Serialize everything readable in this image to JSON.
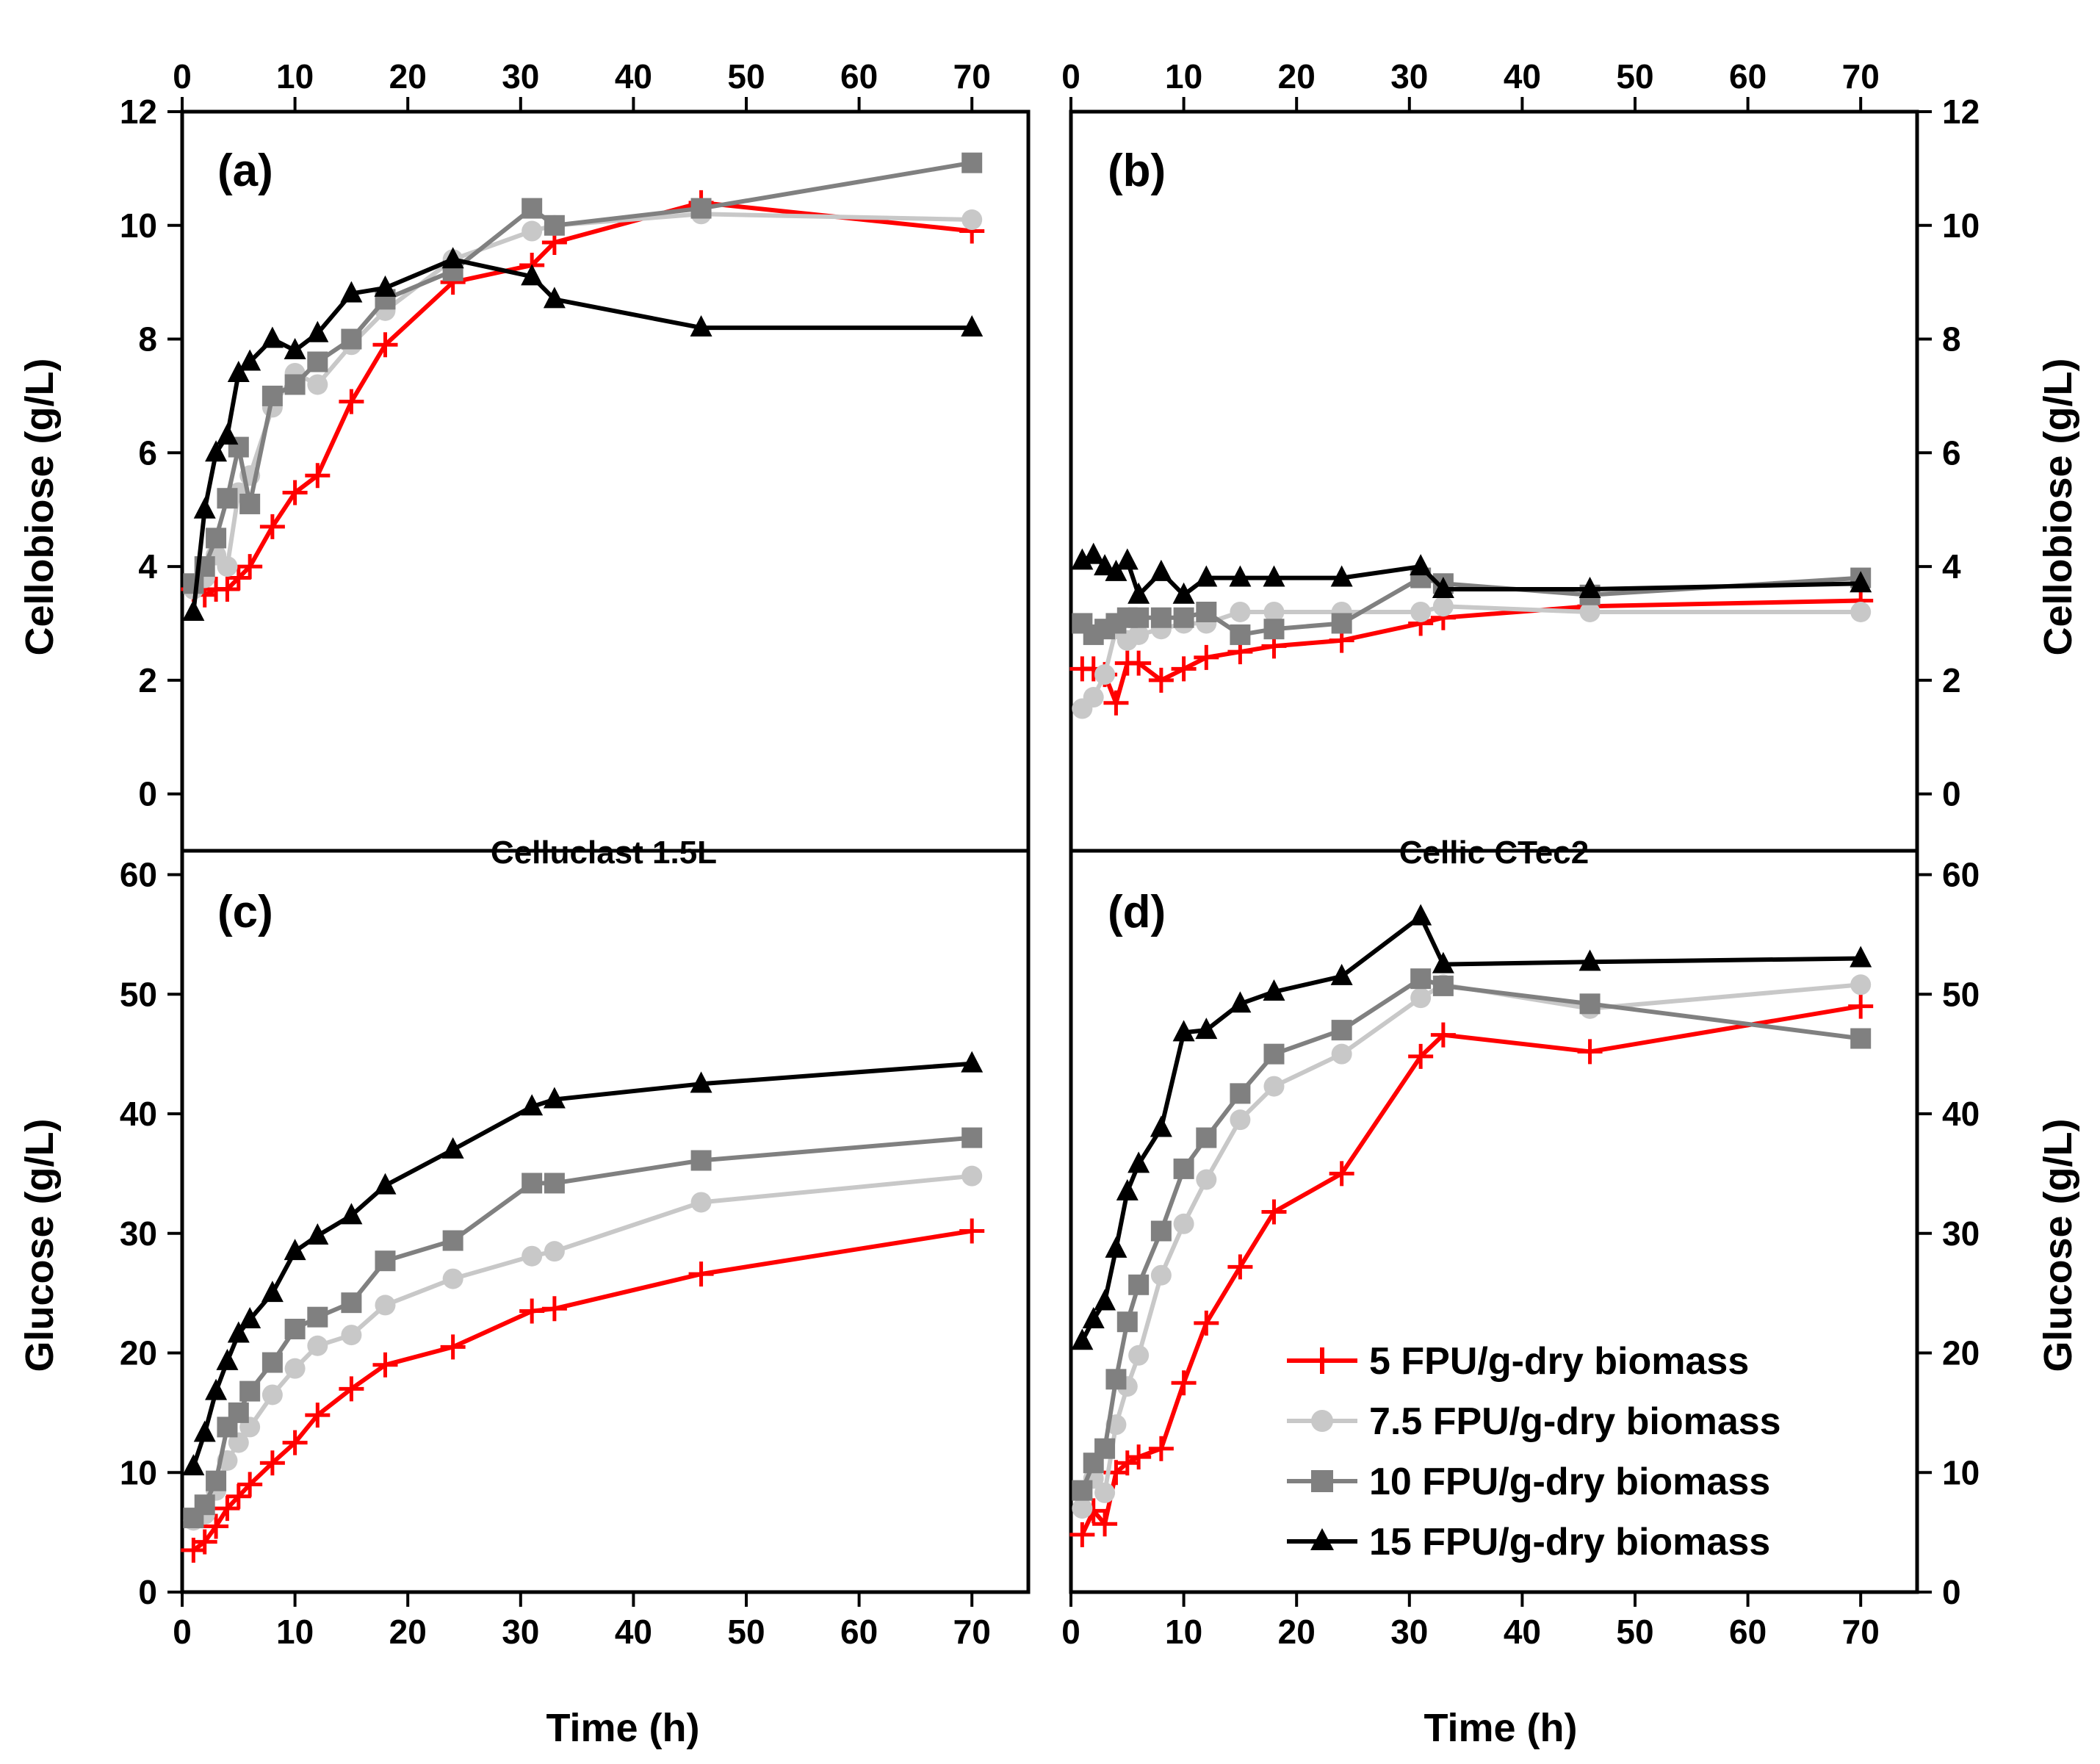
{
  "chart_data": {
    "type": "line",
    "x_label": "Time (h)",
    "x_range": [
      0,
      75
    ],
    "x_ticks": [
      0,
      10,
      20,
      30,
      40,
      50,
      60,
      70
    ],
    "enzymes": [
      "Celluclast 1.5L",
      "Cellic CTec2"
    ],
    "legend_position": "bottom-right of panel (d)",
    "series_styles": [
      {
        "name": "5 FPU/g-dry biomass",
        "color": "#ff0000",
        "marker": "plus"
      },
      {
        "name": "7.5 FPU/g-dry biomass",
        "color": "#c8c8c8",
        "marker": "circle"
      },
      {
        "name": "10 FPU/g-dry biomass",
        "color": "#808080",
        "marker": "square"
      },
      {
        "name": "15 FPU/g-dry biomass",
        "color": "#000000",
        "marker": "triangle"
      }
    ],
    "panels": [
      {
        "id": "a",
        "label": "(a)",
        "enzyme": "Celluclast 1.5L",
        "ylabel": "Cellobiose (g/L)",
        "ylim": [
          -1,
          12
        ],
        "yticks": [
          0,
          2,
          4,
          6,
          8,
          10,
          12
        ],
        "series": [
          {
            "name": "5 FPU/g-dry biomass",
            "x": [
              1,
              2,
              3,
              4,
              5,
              6,
              8,
              10,
              12,
              15,
              18,
              24,
              31,
              33,
              46,
              70
            ],
            "y": [
              3.6,
              3.5,
              3.6,
              3.6,
              3.8,
              4.0,
              4.7,
              5.3,
              5.6,
              6.9,
              7.9,
              9.0,
              9.3,
              9.7,
              10.4,
              9.9
            ]
          },
          {
            "name": "7.5 FPU/g-dry biomass",
            "x": [
              1,
              2,
              3,
              4,
              5,
              6,
              8,
              10,
              12,
              15,
              18,
              24,
              31,
              33,
              46,
              70
            ],
            "y": [
              3.6,
              3.8,
              4.2,
              4.0,
              5.3,
              5.6,
              6.8,
              7.4,
              7.2,
              7.9,
              8.5,
              9.4,
              9.9,
              10.0,
              10.2,
              10.1
            ]
          },
          {
            "name": "10 FPU/g-dry biomass",
            "x": [
              1,
              2,
              3,
              4,
              5,
              6,
              8,
              10,
              12,
              15,
              18,
              24,
              31,
              33,
              46,
              70
            ],
            "y": [
              3.7,
              4.0,
              4.5,
              5.2,
              6.1,
              5.1,
              7.0,
              7.2,
              7.6,
              8.0,
              8.7,
              9.2,
              10.3,
              10.0,
              10.3,
              11.1
            ]
          },
          {
            "name": "15 FPU/g-dry biomass",
            "x": [
              1,
              2,
              3,
              4,
              5,
              6,
              8,
              10,
              12,
              15,
              18,
              24,
              31,
              33,
              46,
              70
            ],
            "y": [
              3.2,
              5.0,
              6.0,
              6.3,
              7.4,
              7.6,
              8.0,
              7.8,
              8.1,
              8.8,
              8.9,
              9.4,
              9.1,
              8.7,
              8.2,
              8.2
            ]
          }
        ]
      },
      {
        "id": "b",
        "label": "(b)",
        "enzyme": "Cellic CTec2",
        "ylabel": "Cellobiose (g/L)",
        "ylim": [
          -1,
          12
        ],
        "yticks": [
          0,
          2,
          4,
          6,
          8,
          10,
          12
        ],
        "series": [
          {
            "name": "5 FPU/g-dry biomass",
            "x": [
              1,
              2,
              3,
              4,
              5,
              6,
              8,
              10,
              12,
              15,
              18,
              24,
              31,
              33,
              46,
              70
            ],
            "y": [
              2.2,
              2.2,
              2.1,
              1.6,
              2.3,
              2.3,
              2.0,
              2.2,
              2.4,
              2.5,
              2.6,
              2.7,
              3.0,
              3.1,
              3.3,
              3.4
            ]
          },
          {
            "name": "7.5 FPU/g-dry biomass",
            "x": [
              1,
              2,
              3,
              4,
              5,
              6,
              8,
              10,
              12,
              15,
              18,
              24,
              31,
              33,
              46,
              70
            ],
            "y": [
              1.5,
              1.7,
              2.1,
              2.9,
              2.7,
              2.8,
              2.9,
              3.0,
              3.0,
              3.2,
              3.2,
              3.2,
              3.2,
              3.3,
              3.2,
              3.2
            ]
          },
          {
            "name": "10 FPU/g-dry biomass",
            "x": [
              1,
              2,
              3,
              4,
              5,
              6,
              8,
              10,
              12,
              15,
              18,
              24,
              31,
              33,
              46,
              70
            ],
            "y": [
              3.0,
              2.8,
              2.9,
              3.0,
              3.1,
              3.1,
              3.1,
              3.1,
              3.2,
              2.8,
              2.9,
              3.0,
              3.8,
              3.7,
              3.5,
              3.8
            ]
          },
          {
            "name": "15 FPU/g-dry biomass",
            "x": [
              1,
              2,
              3,
              4,
              5,
              6,
              8,
              10,
              12,
              15,
              18,
              24,
              31,
              33,
              46,
              70
            ],
            "y": [
              4.1,
              4.2,
              4.0,
              3.9,
              4.1,
              3.5,
              3.9,
              3.5,
              3.8,
              3.8,
              3.8,
              3.8,
              4.0,
              3.6,
              3.6,
              3.7
            ]
          }
        ]
      },
      {
        "id": "c",
        "label": "(c)",
        "enzyme": "Celluclast 1.5L",
        "ylabel": "Glucose (g/L)",
        "ylim": [
          0,
          62
        ],
        "yticks": [
          0,
          10,
          20,
          30,
          40,
          50,
          60
        ],
        "series": [
          {
            "name": "5 FPU/g-dry biomass",
            "x": [
              1,
              2,
              3,
              4,
              5,
              6,
              8,
              10,
              12,
              15,
              18,
              24,
              31,
              33,
              46,
              70
            ],
            "y": [
              3.5,
              4.2,
              5.5,
              7.0,
              8.0,
              9.0,
              10.8,
              12.5,
              14.8,
              17.0,
              19.0,
              20.5,
              23.5,
              23.7,
              26.6,
              30.2
            ]
          },
          {
            "name": "7.5 FPU/g-dry biomass",
            "x": [
              1,
              2,
              3,
              4,
              5,
              6,
              8,
              10,
              12,
              15,
              18,
              24,
              31,
              33,
              46,
              70
            ],
            "y": [
              6.0,
              6.5,
              8.5,
              11.0,
              12.5,
              13.8,
              16.5,
              18.7,
              20.6,
              21.5,
              24.0,
              26.2,
              28.1,
              28.5,
              32.6,
              34.8
            ]
          },
          {
            "name": "10 FPU/g-dry biomass",
            "x": [
              1,
              2,
              3,
              4,
              5,
              6,
              8,
              10,
              12,
              15,
              18,
              24,
              31,
              33,
              46,
              70
            ],
            "y": [
              6.2,
              7.3,
              9.3,
              13.8,
              15.0,
              16.8,
              19.2,
              22.0,
              23.0,
              24.2,
              27.7,
              29.4,
              34.2,
              34.2,
              36.1,
              38.0
            ]
          },
          {
            "name": "15 FPU/g-dry biomass",
            "x": [
              1,
              2,
              3,
              4,
              5,
              6,
              8,
              10,
              12,
              15,
              18,
              24,
              31,
              33,
              46,
              70
            ],
            "y": [
              10.5,
              13.3,
              16.8,
              19.3,
              21.6,
              22.8,
              25.0,
              28.5,
              29.8,
              31.5,
              34.0,
              37.0,
              40.6,
              41.2,
              42.5,
              44.2
            ]
          }
        ]
      },
      {
        "id": "d",
        "label": "(d)",
        "enzyme": "Cellic CTec2",
        "ylabel": "Glucose (g/L)",
        "ylim": [
          0,
          62
        ],
        "yticks": [
          0,
          10,
          20,
          30,
          40,
          50,
          60
        ],
        "series": [
          {
            "name": "5 FPU/g-dry biomass",
            "x": [
              1,
              2,
              3,
              4,
              5,
              6,
              8,
              10,
              12,
              15,
              18,
              24,
              31,
              33,
              46,
              70
            ],
            "y": [
              4.8,
              6.8,
              5.7,
              10.0,
              10.8,
              11.3,
              12.0,
              17.5,
              22.5,
              27.2,
              31.8,
              35.0,
              44.8,
              46.6,
              45.2,
              49.0
            ]
          },
          {
            "name": "7.5 FPU/g-dry biomass",
            "x": [
              1,
              2,
              3,
              4,
              5,
              6,
              8,
              10,
              12,
              15,
              18,
              24,
              31,
              33,
              46,
              70
            ],
            "y": [
              7.0,
              9.5,
              8.3,
              14.0,
              17.2,
              19.8,
              26.5,
              30.8,
              34.5,
              39.5,
              42.3,
              45.0,
              49.7,
              50.8,
              48.8,
              50.8
            ]
          },
          {
            "name": "10 FPU/g-dry biomass",
            "x": [
              1,
              2,
              3,
              4,
              5,
              6,
              8,
              10,
              12,
              15,
              18,
              24,
              31,
              33,
              46,
              70
            ],
            "y": [
              8.5,
              10.8,
              12.0,
              17.8,
              22.6,
              25.7,
              30.2,
              35.4,
              38.0,
              41.7,
              45.0,
              47.0,
              51.3,
              50.7,
              49.2,
              46.3
            ]
          },
          {
            "name": "15 FPU/g-dry biomass",
            "x": [
              1,
              2,
              3,
              4,
              5,
              6,
              8,
              10,
              12,
              15,
              18,
              24,
              31,
              33,
              46,
              70
            ],
            "y": [
              21.0,
              22.8,
              24.3,
              28.7,
              33.5,
              35.8,
              38.8,
              46.8,
              47.0,
              49.2,
              50.2,
              51.5,
              56.5,
              52.5,
              52.7,
              53.0
            ]
          }
        ]
      }
    ]
  }
}
